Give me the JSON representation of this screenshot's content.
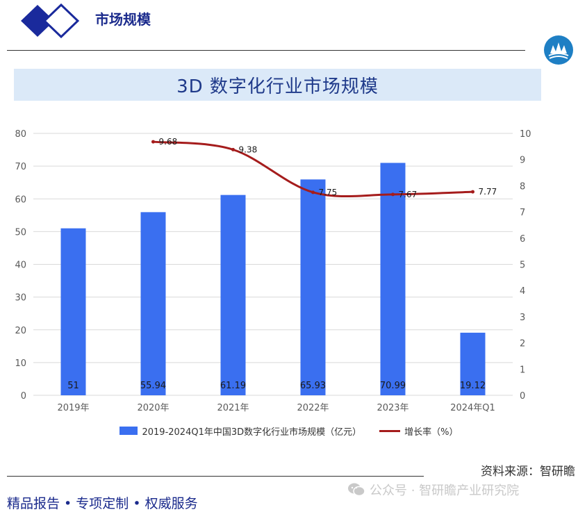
{
  "header": {
    "title": "市场规模"
  },
  "chart_title": "3D 数字化行业市场规模",
  "chart_data": {
    "type": "bar",
    "categories": [
      "2019年",
      "2020年",
      "2021年",
      "2022年",
      "2023年",
      "2024年Q1"
    ],
    "series": [
      {
        "name": "2019-2024Q1年中国3D数字化行业市场规模（亿元）",
        "type": "bar",
        "axis": "left",
        "values": [
          51,
          55.94,
          61.19,
          65.93,
          70.99,
          19.12
        ],
        "labels": [
          "51",
          "55.94",
          "61.19",
          "65.93",
          "70.99",
          "19.12"
        ]
      },
      {
        "name": "增长率（%）",
        "type": "line",
        "axis": "right",
        "values": [
          null,
          9.68,
          9.38,
          7.75,
          7.67,
          7.77
        ],
        "labels": [
          "",
          "9.68",
          "9.38",
          "7.75",
          "7.67",
          "7.77"
        ]
      }
    ],
    "ylim_left": [
      0,
      80
    ],
    "ylim_right": [
      0,
      10
    ],
    "yticks_left": [
      "0",
      "10",
      "20",
      "30",
      "40",
      "50",
      "60",
      "70",
      "80"
    ],
    "yticks_right": [
      "0",
      "1",
      "2",
      "3",
      "4",
      "5",
      "6",
      "7",
      "8",
      "9",
      "10"
    ],
    "grid": true,
    "legend_position": "bottom",
    "colors": {
      "bar": "#3a6ff0",
      "line": "#a51c1c"
    }
  },
  "legend": {
    "bar_label": "2019-2024Q1年中国3D数字化行业市场规模（亿元）",
    "line_label": "增长率（%）"
  },
  "source": "资料来源：智研瞻",
  "footer": {
    "tagline": "精品报告 •  专项定制 • 权威服务",
    "watermark": "公众号 · 智研瞻产业研究院"
  }
}
